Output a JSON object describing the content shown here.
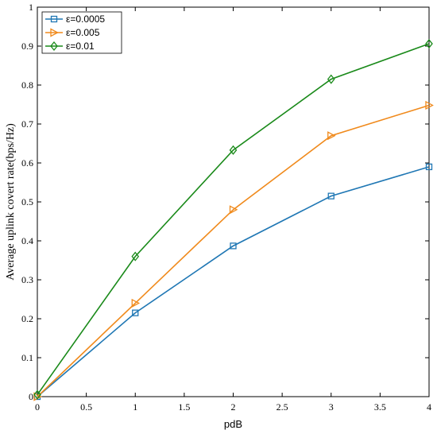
{
  "chart_data": {
    "type": "line",
    "title": "",
    "xlabel": "pdB",
    "ylabel": "Average uplink covert rate(bps/Hz)",
    "x": [
      0,
      1,
      2,
      3,
      4
    ],
    "xlim": [
      0,
      4
    ],
    "ylim": [
      0,
      1
    ],
    "xticks": [
      "0",
      "0.5",
      "1",
      "1.5",
      "2",
      "2.5",
      "3",
      "3.5",
      "4"
    ],
    "yticks": [
      "0",
      "0.1",
      "0.2",
      "0.3",
      "0.4",
      "0.5",
      "0.6",
      "0.7",
      "0.8",
      "0.9",
      "1"
    ],
    "grid": false,
    "legend_position": "top-left",
    "series": [
      {
        "name": "ε=0.0005",
        "color": "#1f77b4",
        "marker": "square",
        "values": [
          0.0,
          0.215,
          0.387,
          0.515,
          0.59
        ]
      },
      {
        "name": "ε=0.005",
        "color": "#f08a1c",
        "marker": "triangle-right",
        "values": [
          0.0,
          0.24,
          0.48,
          0.67,
          0.748
        ]
      },
      {
        "name": "ε=0.01",
        "color": "#1a8a1a",
        "marker": "diamond",
        "values": [
          0.005,
          0.36,
          0.633,
          0.815,
          0.906
        ]
      }
    ]
  }
}
